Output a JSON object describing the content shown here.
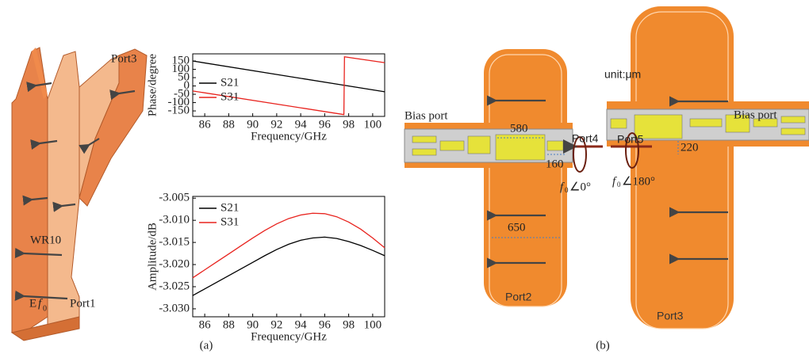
{
  "figure_a": {
    "port_top": "Port3",
    "waveguide": "WR10",
    "port_bottom": "Port1",
    "field": {
      "vector": "E",
      "symbol": "f",
      "subscript": "0"
    },
    "caption": "(a)"
  },
  "chart_data": [
    {
      "type": "line",
      "ylabel": "Phase/degree",
      "xlabel": "Frequency/GHz",
      "x": [
        85,
        97.6,
        97.65,
        101
      ],
      "series": [
        {
          "name": "S21",
          "color": "#000000",
          "values": [
            150,
            4.3,
            3.7,
            -35
          ]
        },
        {
          "name": "S31",
          "color": "#e8231e",
          "values": [
            -30,
            -172,
            175,
            140
          ]
        }
      ],
      "xlim": [
        85,
        101
      ],
      "xticks": [
        86,
        88,
        90,
        92,
        94,
        96,
        98,
        100
      ],
      "ylim": [
        -183,
        193
      ],
      "yticks": [
        150,
        100,
        50,
        0,
        -50,
        -100,
        -150
      ],
      "legend": "lower left"
    },
    {
      "type": "line",
      "ylabel": "Amplitude/dB",
      "xlabel": "Frequency/GHz",
      "x": [
        85,
        86,
        87,
        88,
        89,
        90,
        91,
        92,
        93,
        94,
        95,
        96,
        97,
        98,
        99,
        100,
        101
      ],
      "series": [
        {
          "name": "S21",
          "color": "#000000",
          "values": [
            -3.027,
            -3.0255,
            -3.024,
            -3.0225,
            -3.021,
            -3.0195,
            -3.018,
            -3.0166,
            -3.0154,
            -3.0145,
            -3.014,
            -3.0138,
            -3.0141,
            -3.0148,
            -3.0157,
            -3.0168,
            -3.018
          ]
        },
        {
          "name": "S31",
          "color": "#e8231e",
          "values": [
            -3.023,
            -3.0212,
            -3.0194,
            -3.0176,
            -3.0158,
            -3.014,
            -3.0123,
            -3.0108,
            -3.0096,
            -3.0088,
            -3.0084,
            -3.0085,
            -3.0092,
            -3.0104,
            -3.012,
            -3.014,
            -3.0162
          ]
        }
      ],
      "xlim": [
        85,
        101
      ],
      "xticks": [
        86,
        88,
        90,
        92,
        94,
        96,
        98,
        100
      ],
      "ylim": [
        -3.0318,
        -3.0046
      ],
      "yticks": [
        -3.005,
        {
          "value": -3.01,
          "label": "-3.010"
        },
        -3.015,
        {
          "value": -3.02,
          "label": "-3.020"
        },
        -3.025,
        {
          "value": -3.03,
          "label": "-3.030"
        }
      ],
      "legend": "upper left"
    }
  ],
  "figure_b": {
    "unit": "unit:μm",
    "bias_left": "Bias port",
    "bias_right": "Bias port",
    "dim_580": "580",
    "dim_160": "160",
    "dim_650": "650",
    "dim_220": "220",
    "port4": "Port4",
    "port5": "Port5",
    "port2": "Port2",
    "port3": "Port3",
    "phase_left": {
      "symbol": "f",
      "subscript": "0",
      "angle": "∠0°"
    },
    "phase_right": {
      "symbol": "f",
      "subscript": "0",
      "angle": "∠180°"
    },
    "caption": "(b)"
  }
}
